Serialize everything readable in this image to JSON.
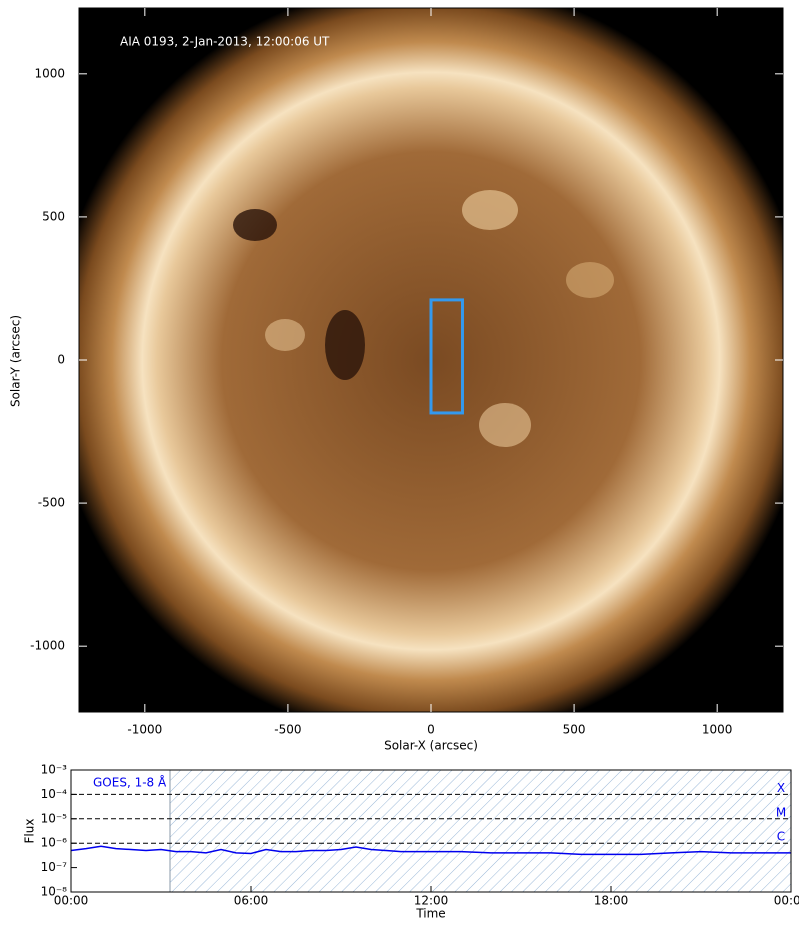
{
  "chart_data": [
    {
      "type": "image",
      "annotation": "AIA 0193, 2-Jan-2013, 12:00:06 UT",
      "xlabel": "Solar-X (arcsec)",
      "ylabel": "Solar-Y (arcsec)",
      "xlim": [
        -1230,
        1230
      ],
      "ylim": [
        -1230,
        1230
      ],
      "xticks": [
        -1000,
        -500,
        0,
        500,
        1000
      ],
      "yticks": [
        -1000,
        -500,
        0,
        500,
        1000
      ],
      "box": {
        "x": [
          0,
          110
        ],
        "y": [
          -185,
          210
        ]
      },
      "box_color": "#3399ee"
    },
    {
      "type": "line",
      "log_y": true,
      "xlabel": "Time",
      "ylabel": "Flux",
      "xlim": [
        0,
        24
      ],
      "ylim": [
        1e-08,
        0.001
      ],
      "xticks": [
        {
          "value": 0,
          "label": "00:00"
        },
        {
          "value": 6,
          "label": "06:00"
        },
        {
          "value": 12,
          "label": "12:00"
        },
        {
          "value": 18,
          "label": "18:00"
        },
        {
          "value": 24,
          "label": "00:00"
        }
      ],
      "yticks": [
        {
          "value": 1e-08,
          "label": "10⁻⁸"
        },
        {
          "value": 1e-07,
          "label": "10⁻⁷"
        },
        {
          "value": 1e-06,
          "label": "10⁻⁶"
        },
        {
          "value": 1e-05,
          "label": "10⁻⁵"
        },
        {
          "value": 0.0001,
          "label": "10⁻⁴"
        },
        {
          "value": 0.001,
          "label": "10⁻³"
        }
      ],
      "levels": [
        {
          "value": 0.0001,
          "label": "X"
        },
        {
          "value": 1e-05,
          "label": "M"
        },
        {
          "value": 1e-06,
          "label": "C"
        }
      ],
      "hatch_range": [
        3.3,
        24
      ],
      "x": [
        0,
        0.5,
        1,
        1.5,
        2,
        2.5,
        3,
        3.5,
        4,
        4.5,
        5,
        5.5,
        6,
        6.5,
        7,
        7.5,
        8,
        8.5,
        9,
        9.5,
        10,
        10.5,
        11,
        11.5,
        12,
        13,
        14,
        15,
        16,
        17,
        18,
        19,
        20,
        21,
        22,
        23,
        24
      ],
      "series": [
        {
          "name": "GOES, 1-8 Å",
          "color": "#0000ee",
          "values": [
            5e-07,
            6e-07,
            7.5e-07,
            6e-07,
            5.5e-07,
            5e-07,
            5.5e-07,
            4.5e-07,
            4.5e-07,
            4e-07,
            5.5e-07,
            4e-07,
            3.8e-07,
            5.5e-07,
            4.5e-07,
            4.5e-07,
            5e-07,
            5e-07,
            5.5e-07,
            7e-07,
            5.5e-07,
            5e-07,
            4.5e-07,
            4.5e-07,
            4.5e-07,
            4.5e-07,
            4e-07,
            4e-07,
            4e-07,
            3.5e-07,
            3.5e-07,
            3.5e-07,
            4e-07,
            4.5e-07,
            4e-07,
            4e-07,
            4e-07
          ]
        }
      ]
    }
  ]
}
